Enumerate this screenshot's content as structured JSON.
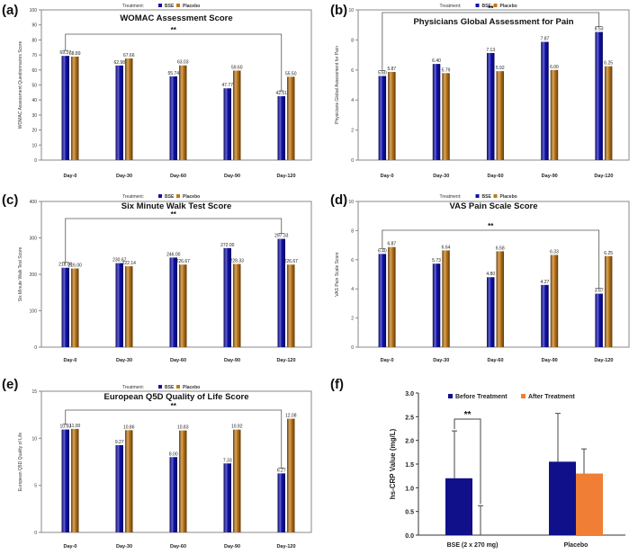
{
  "colors": {
    "bse": "#1010b0",
    "placebo": "#c07818",
    "before": "#10108a",
    "after": "#f07f35",
    "frame": "#888888",
    "grid": "#d9d9d9"
  },
  "legend": {
    "treatment": "Treatment:",
    "bse": "BSE",
    "placebo": "Placebo"
  },
  "significance": "**",
  "chart_data": [
    {
      "id": "a",
      "panel_label": "(a)",
      "type": "bar",
      "title": "WOMAC Assessment  Score",
      "ylabel": "WOMAC Assessment Questionnaires Score",
      "ylim": [
        0,
        100
      ],
      "yticks": [
        0,
        10,
        20,
        30,
        40,
        50,
        60,
        70,
        80,
        90,
        100
      ],
      "categories": [
        "Day-0",
        "Day-30",
        "Day-60",
        "Day-90",
        "Day-120"
      ],
      "series": [
        {
          "name": "BSE",
          "values": [
            69.37,
            62.98,
            55.74,
            47.77,
            42.51
          ],
          "labels": [
            "69.37",
            "62.98",
            "55.74",
            "47.77",
            "42.51"
          ]
        },
        {
          "name": "Placebo",
          "values": [
            68.89,
            67.66,
            63.03,
            59.6,
            55.5
          ],
          "labels": [
            "68.89",
            "67.66",
            "63.03",
            "59.60",
            "55.50"
          ]
        }
      ],
      "significance": {
        "from": 0,
        "to": 4,
        "label": "**"
      }
    },
    {
      "id": "b",
      "panel_label": "(b)",
      "type": "bar",
      "title": "Physicians Global Assessment  for Pain",
      "ylabel": "Physicians Global Assessment for Pain",
      "ylim": [
        0,
        10
      ],
      "yticks": [
        0,
        2,
        4,
        6,
        8,
        10
      ],
      "categories": [
        "Day-0",
        "Day-30",
        "Day-60",
        "Day-90",
        "Day-120"
      ],
      "series": [
        {
          "name": "BSE",
          "values": [
            5.6,
            6.4,
            7.13,
            7.87,
            8.53
          ],
          "labels": [
            "5.60",
            "6.40",
            "7.13",
            "7.87",
            "8.53"
          ]
        },
        {
          "name": "Placebo",
          "values": [
            5.87,
            5.79,
            5.92,
            6.0,
            6.25
          ],
          "labels": [
            "5.87",
            "5.79",
            "5.92",
            "6.00",
            "6.25"
          ]
        }
      ],
      "significance": {
        "from": 0,
        "to": 4,
        "label": "**"
      }
    },
    {
      "id": "c",
      "panel_label": "(c)",
      "type": "bar",
      "title": "Six Minute Walk Test Score",
      "ylabel": "Six Minute Walk Test Score",
      "ylim": [
        0,
        400
      ],
      "yticks": [
        0,
        100,
        200,
        300,
        400
      ],
      "categories": [
        "Day-0",
        "Day-30",
        "Day-60",
        "Day-90",
        "Day-120"
      ],
      "series": [
        {
          "name": "BSE",
          "values": [
            218.0,
            230.67,
            246.0,
            272.0,
            297.33
          ],
          "labels": [
            "218.00",
            "230.67",
            "246.00",
            "272.00",
            "297.33"
          ]
        },
        {
          "name": "Placebo",
          "values": [
            216.0,
            222.14,
            226.67,
            228.33,
            226.67
          ],
          "labels": [
            "216.00",
            "222.14",
            "226.67",
            "228.33",
            "226.67"
          ]
        }
      ],
      "significance": {
        "from": 0,
        "to": 4,
        "label": "**"
      }
    },
    {
      "id": "d",
      "panel_label": "(d)",
      "type": "bar",
      "title": "VAS Pain Scale  Score",
      "ylabel": "VAS Pain Scale Score",
      "ylim": [
        0,
        10
      ],
      "yticks": [
        0,
        2,
        4,
        6,
        8,
        10
      ],
      "categories": [
        "Day-0",
        "Day-30",
        "Day-60",
        "Day-90",
        "Day-120"
      ],
      "series": [
        {
          "name": "BSE",
          "values": [
            6.4,
            5.73,
            4.8,
            4.27,
            3.67
          ],
          "labels": [
            "6.40",
            "5.73",
            "4.80",
            "4.27",
            "3.67"
          ]
        },
        {
          "name": "Placebo",
          "values": [
            6.87,
            6.64,
            6.58,
            6.33,
            6.25
          ],
          "labels": [
            "6.87",
            "6.64",
            "6.58",
            "6.33",
            "6.25"
          ]
        }
      ],
      "significance": {
        "from": 0,
        "to": 4,
        "label": "**"
      }
    },
    {
      "id": "e",
      "panel_label": "(e)",
      "type": "bar",
      "title": "European Q5D Quality of Life Score",
      "ylabel": "European Q5D Quality of Life",
      "ylim": [
        0,
        15
      ],
      "yticks": [
        0,
        5,
        10,
        15
      ],
      "categories": [
        "Day-0",
        "Day-30",
        "Day-60",
        "Day-90",
        "Day-120"
      ],
      "series": [
        {
          "name": "BSE",
          "values": [
            10.93,
            9.27,
            8.0,
            7.33,
            6.27
          ],
          "labels": [
            "10.93",
            "9.27",
            "8.00",
            "7.33",
            "6.27"
          ]
        },
        {
          "name": "Placebo",
          "values": [
            11.0,
            10.86,
            10.83,
            10.92,
            12.08
          ],
          "labels": [
            "11.00",
            "10.86",
            "10.83",
            "10.92",
            "12.08"
          ]
        }
      ],
      "significance": {
        "from": 0,
        "to": 4,
        "label": "**"
      }
    },
    {
      "id": "f",
      "panel_label": "(f)",
      "type": "bar",
      "title": "",
      "ylabel": "hs-CRP Value (mg/L)",
      "ylim": [
        0,
        3.0
      ],
      "yticks": [
        "0.0",
        "0.5",
        "1.0",
        "1.5",
        "2.0",
        "2.5",
        "3.0"
      ],
      "categories": [
        "BSE (2 x 270 mg)",
        "Placebo"
      ],
      "series": [
        {
          "name": "Before Treatment",
          "values": [
            1.2,
            1.55
          ],
          "error": [
            1.0,
            1.02
          ]
        },
        {
          "name": "After Treatment",
          "values": [
            0.0,
            1.3
          ],
          "error": [
            0.62,
            0.52
          ]
        }
      ],
      "significance": {
        "label": "**"
      }
    }
  ]
}
